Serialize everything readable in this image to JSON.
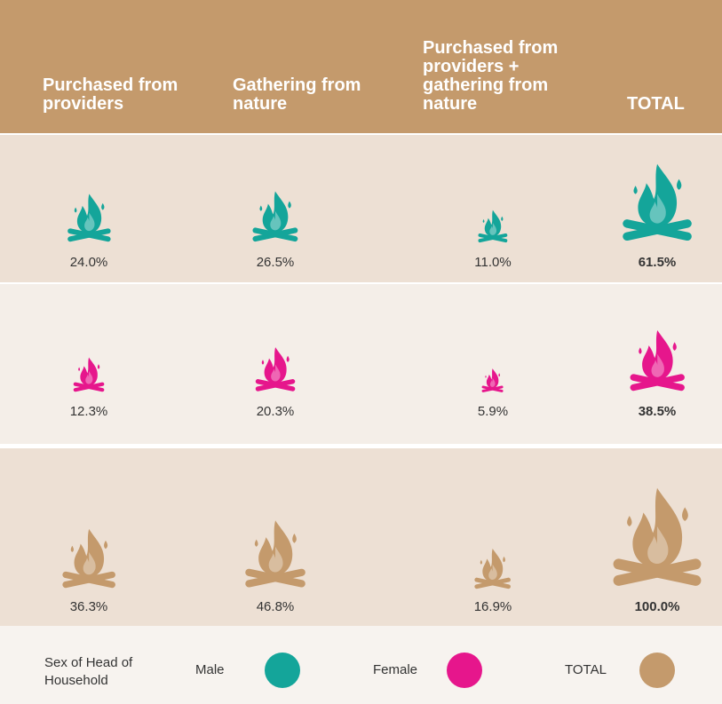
{
  "header": [
    "Purchased from providers",
    "Gathering from nature",
    "Purchased from providers + gathering from nature",
    "TOTAL"
  ],
  "rows": [
    {
      "color": "#14a59a",
      "values": [
        24.0,
        26.5,
        11.0,
        61.5
      ],
      "value_labels": [
        "24.0%",
        "26.5%",
        "11.0%",
        "61.5%"
      ]
    },
    {
      "color": "#e6168c",
      "values": [
        12.3,
        20.3,
        5.9,
        38.5
      ],
      "value_labels": [
        "12.3%",
        "20.3%",
        "5.9%",
        "38.5%"
      ]
    },
    {
      "color": "#c49a6c",
      "values": [
        36.3,
        46.8,
        16.9,
        100.0
      ],
      "value_labels": [
        "36.3%",
        "46.8%",
        "16.9%",
        "100.0%"
      ]
    }
  ],
  "legend": {
    "title": "Sex of Head of Household",
    "items": [
      {
        "label": "Male",
        "color": "#14a59a"
      },
      {
        "label": "Female",
        "color": "#e6168c"
      },
      {
        "label": "TOTAL",
        "color": "#c49a6c"
      }
    ]
  }
}
